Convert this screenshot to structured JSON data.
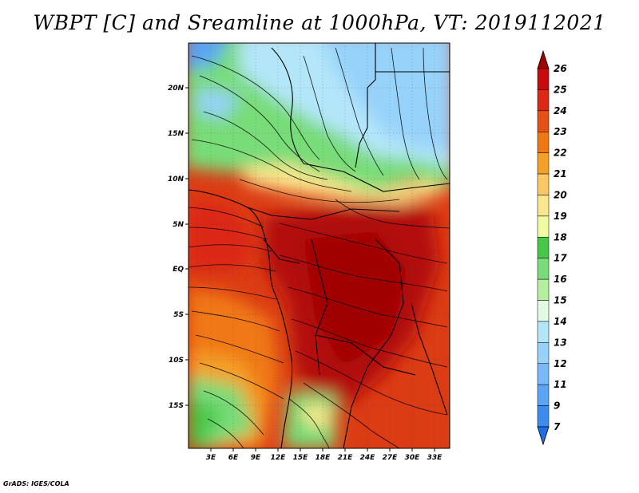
{
  "title": "WBPT [C] and Sreamline at 1000hPa, VT: 2019112021",
  "credit": "GrADS: IGES/COLA",
  "map": {
    "lon_ticks": [
      "3E",
      "6E",
      "9E",
      "12E",
      "15E",
      "18E",
      "21E",
      "24E",
      "27E",
      "30E",
      "33E"
    ],
    "lat_ticks": [
      "20N",
      "15N",
      "10N",
      "5N",
      "EQ",
      "5S",
      "10S",
      "15S"
    ]
  },
  "colorbar": {
    "levels": [
      "7",
      "9",
      "11",
      "12",
      "13",
      "14",
      "15",
      "16",
      "17",
      "18",
      "19",
      "20",
      "21",
      "22",
      "23",
      "24",
      "25",
      "26"
    ],
    "colors": [
      "#1e6ee6",
      "#3c8cf0",
      "#5aa5f5",
      "#78b9f8",
      "#96d2fa",
      "#b4e6fa",
      "#e1fae1",
      "#b4f0a0",
      "#78dc78",
      "#46c846",
      "#f0faa0",
      "#fae68c",
      "#fac864",
      "#f5a028",
      "#f07814",
      "#e65014",
      "#dc2814",
      "#c80a0a",
      "#a00000"
    ]
  }
}
